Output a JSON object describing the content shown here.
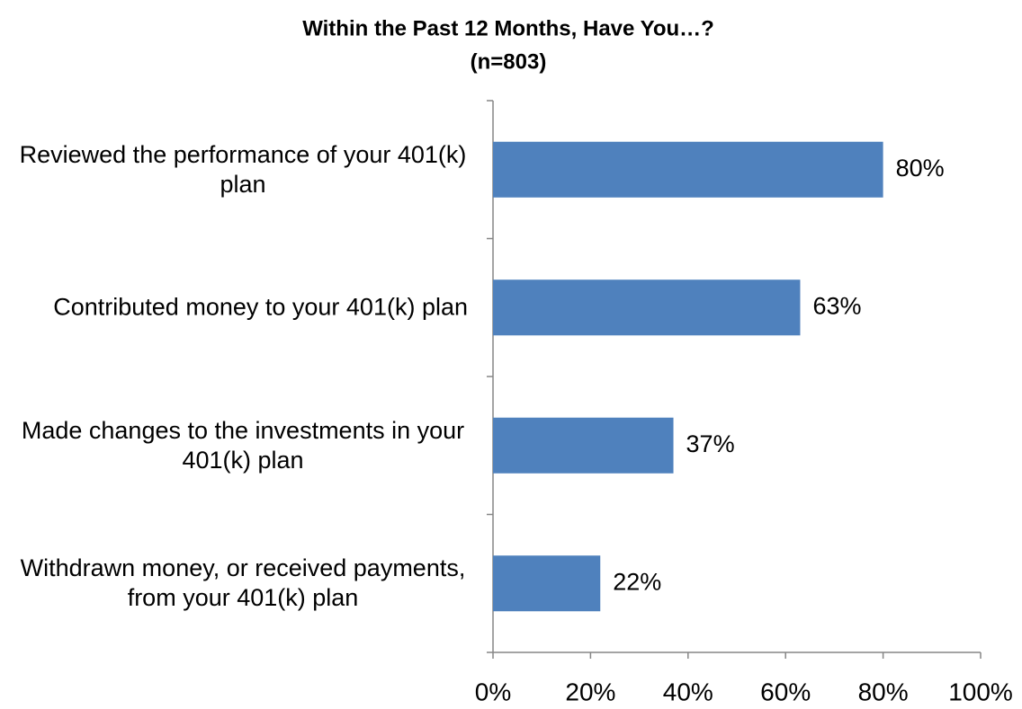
{
  "chart_data": {
    "type": "bar",
    "orientation": "horizontal",
    "title": "Within the Past 12 Months, Have You…?",
    "subtitle": "(n=803)",
    "categories": [
      "Reviewed the performance of your 401(k) plan",
      "Contributed money to your 401(k) plan",
      "Made changes to the investments in your 401(k) plan",
      "Withdrawn money, or received payments, from your 401(k) plan"
    ],
    "values": [
      80,
      63,
      37,
      22
    ],
    "value_labels": [
      "80%",
      "63%",
      "37%",
      "22%"
    ],
    "color": "#4f81bd",
    "xlim": [
      0,
      100
    ],
    "xticks": [
      {
        "value": 0,
        "label": "0%"
      },
      {
        "value": 20,
        "label": "20%"
      },
      {
        "value": 40,
        "label": "40%"
      },
      {
        "value": 60,
        "label": "60%"
      },
      {
        "value": 80,
        "label": "80%"
      },
      {
        "value": 100,
        "label": "100%"
      }
    ],
    "grid": false
  }
}
